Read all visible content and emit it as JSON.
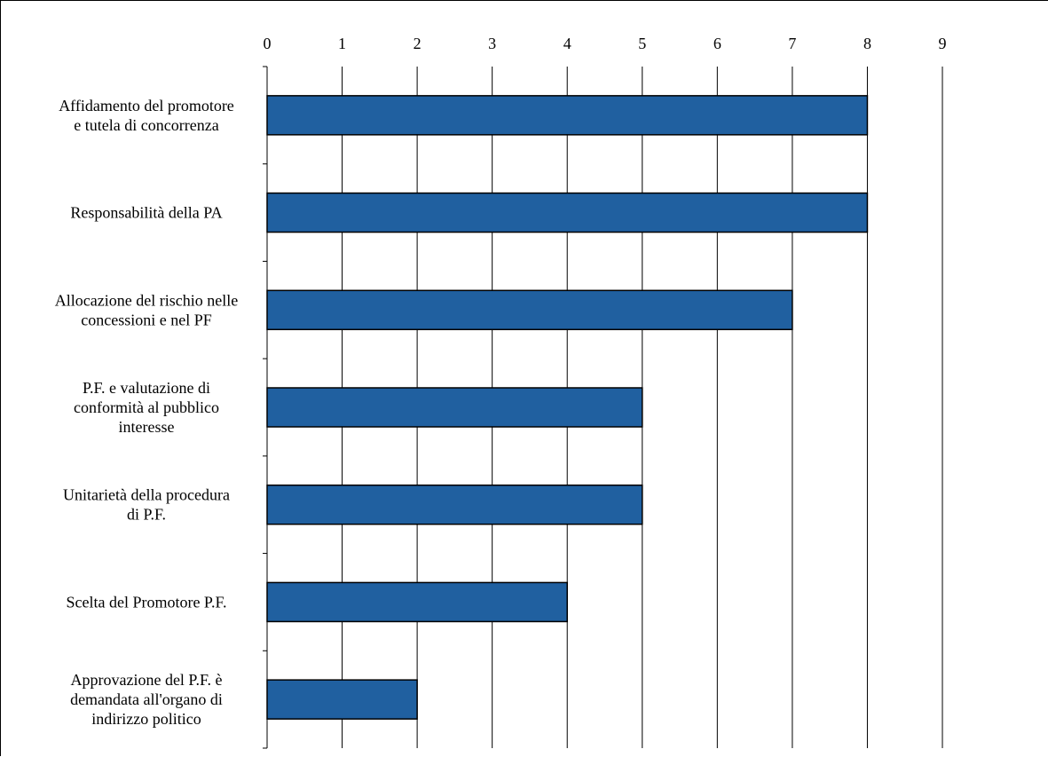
{
  "chart_data": {
    "type": "bar",
    "orientation": "horizontal",
    "title": "",
    "xlabel": "",
    "ylabel": "",
    "xlim": [
      0,
      9
    ],
    "x_ticks": [
      "0",
      "1",
      "2",
      "3",
      "4",
      "5",
      "6",
      "7",
      "8",
      "9"
    ],
    "grid": "vertical gridlines",
    "legend": "none",
    "bar_color": "#2060A0",
    "categories": [
      [
        "Affidamento del promotore",
        "e tutela di concorrenza"
      ],
      [
        "Responsabilità della PA"
      ],
      [
        "Allocazione del rischio nelle",
        "concessioni e nel PF"
      ],
      [
        "P.F. e valutazione di",
        "conformità al pubblico",
        "interesse"
      ],
      [
        "Unitarietà della procedura",
        "di P.F."
      ],
      [
        "Scelta del Promotore  P.F."
      ],
      [
        "Approvazione del P.F. è",
        "demandata all'organo di",
        "indirizzo politico"
      ]
    ],
    "values": [
      8,
      8,
      7,
      5,
      5,
      4,
      2
    ]
  }
}
